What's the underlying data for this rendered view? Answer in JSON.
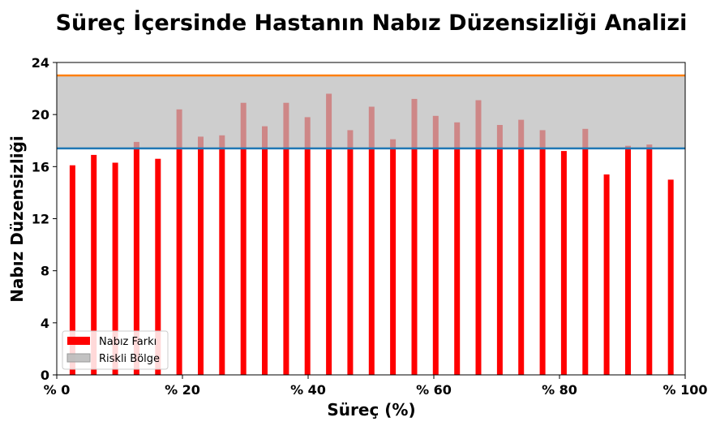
{
  "chart_data": {
    "type": "bar",
    "title": "Süreç İçersinde Hastanın Nabız Düzensizliği Analizi",
    "xlabel": "Süreç (%)",
    "ylabel": "Nabız Düzensizliği",
    "xlim": [
      0,
      100
    ],
    "ylim": [
      0,
      24
    ],
    "xticks": [
      0,
      20,
      40,
      60,
      80,
      100
    ],
    "xtick_labels": [
      "% 0",
      "% 20",
      "% 40",
      "% 60",
      "% 80",
      "% 100"
    ],
    "yticks": [
      0,
      4,
      8,
      12,
      16,
      20,
      24
    ],
    "ytick_labels": [
      "0",
      "4",
      "8",
      "12",
      "16",
      "20",
      "24"
    ],
    "x": [
      2.5,
      5.9,
      9.3,
      12.7,
      16.1,
      19.5,
      22.9,
      26.3,
      29.7,
      33.1,
      36.5,
      39.9,
      43.3,
      46.7,
      50.1,
      53.5,
      56.9,
      60.3,
      63.7,
      67.1,
      70.5,
      73.9,
      77.3,
      80.7,
      84.1,
      87.5,
      90.9,
      94.3,
      97.7
    ],
    "series": [
      {
        "name": "Nabız Farkı",
        "color": "#ff0000",
        "values": [
          16.1,
          16.9,
          16.3,
          17.9,
          16.6,
          20.4,
          18.3,
          18.4,
          20.9,
          19.1,
          20.9,
          19.8,
          21.6,
          18.8,
          20.6,
          18.1,
          21.2,
          19.9,
          19.4,
          21.1,
          19.2,
          19.6,
          18.8,
          17.2,
          18.9,
          15.4,
          17.6,
          17.7,
          15.0
        ]
      }
    ],
    "risk_band": {
      "name": "Riskli Bölge",
      "lower": 17.4,
      "upper": 23.0,
      "color": "#bbbbbb"
    },
    "line_colors": {
      "upper": "#ff7f0e",
      "lower": "#1f77b4"
    },
    "legend_position": "lower-left",
    "grid": false
  }
}
